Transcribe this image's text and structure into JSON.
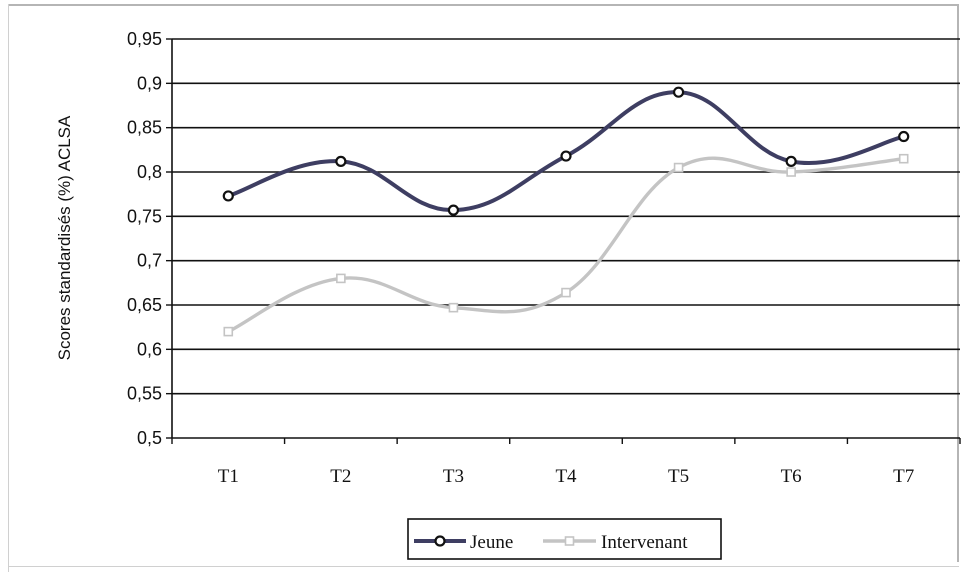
{
  "chart_data": {
    "type": "line",
    "title": "",
    "xlabel": "",
    "ylabel": "Scores standardisés (%) ACLSA",
    "categories": [
      "T1",
      "T2",
      "T3",
      "T4",
      "T5",
      "T6",
      "T7"
    ],
    "ylim": [
      0.5,
      0.95
    ],
    "ytick_values": [
      0.5,
      0.55,
      0.6,
      0.65,
      0.7,
      0.75,
      0.8,
      0.85,
      0.9,
      0.95
    ],
    "ytick_labels": [
      "0,5",
      "0,55",
      "0,6",
      "0,65",
      "0,7",
      "0,75",
      "0,8",
      "0,85",
      "0,9",
      "0,95"
    ],
    "grid": true,
    "smooth": true,
    "legend_position": "bottom",
    "series": [
      {
        "name": "Jeune",
        "values": [
          0.773,
          0.812,
          0.757,
          0.818,
          0.89,
          0.812,
          0.84
        ],
        "color": "#3e3e62",
        "marker": "circle"
      },
      {
        "name": "Intervenant",
        "values": [
          0.62,
          0.68,
          0.647,
          0.664,
          0.805,
          0.8,
          0.815
        ],
        "color": "#c4c4c4",
        "marker": "square"
      }
    ]
  }
}
